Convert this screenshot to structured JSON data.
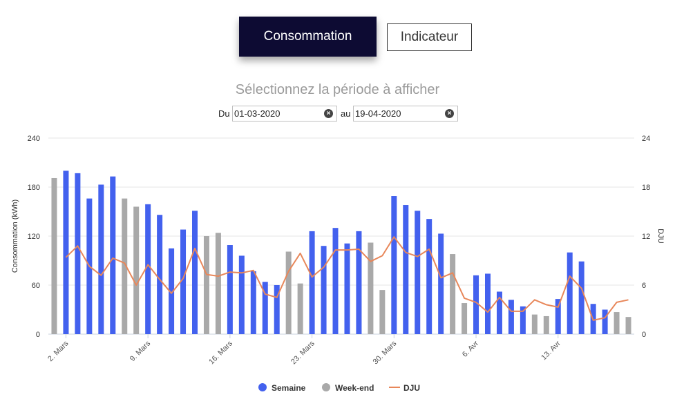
{
  "tabs": {
    "consommation_label": "Consommation",
    "indicateur_label": "Indicateur"
  },
  "period": {
    "title": "Sélectionnez la période à afficher",
    "from_label": "Du",
    "from_value": "01-03-2020",
    "to_label": "au",
    "to_value": "19-04-2020"
  },
  "chart_data": {
    "type": "bar",
    "ylabel": "Consommation (kWh)",
    "y2label": "DJU",
    "ylim": [
      0,
      240
    ],
    "y2lim": [
      0,
      24
    ],
    "yticks": [
      0,
      60,
      120,
      180,
      240
    ],
    "y2ticks": [
      0,
      6,
      12,
      18,
      24
    ],
    "grid": true,
    "legend_position": "bottom-center",
    "x_tick_labels": [
      {
        "label": "2. Mars",
        "date": "2020-03-02"
      },
      {
        "label": "9. Mars",
        "date": "2020-03-09"
      },
      {
        "label": "16. Mars",
        "date": "2020-03-16"
      },
      {
        "label": "23. Mars",
        "date": "2020-03-23"
      },
      {
        "label": "30. Mars",
        "date": "2020-03-30"
      },
      {
        "label": "6. Avr",
        "date": "2020-04-06"
      },
      {
        "label": "13. Avr",
        "date": "2020-04-13"
      }
    ],
    "dates": [
      "2020-03-01",
      "2020-03-02",
      "2020-03-03",
      "2020-03-04",
      "2020-03-05",
      "2020-03-06",
      "2020-03-07",
      "2020-03-08",
      "2020-03-09",
      "2020-03-10",
      "2020-03-11",
      "2020-03-12",
      "2020-03-13",
      "2020-03-14",
      "2020-03-15",
      "2020-03-16",
      "2020-03-17",
      "2020-03-18",
      "2020-03-19",
      "2020-03-20",
      "2020-03-21",
      "2020-03-22",
      "2020-03-23",
      "2020-03-24",
      "2020-03-25",
      "2020-03-26",
      "2020-03-27",
      "2020-03-28",
      "2020-03-29",
      "2020-03-30",
      "2020-03-31",
      "2020-04-01",
      "2020-04-02",
      "2020-04-03",
      "2020-04-04",
      "2020-04-05",
      "2020-04-06",
      "2020-04-07",
      "2020-04-08",
      "2020-04-09",
      "2020-04-10",
      "2020-04-11",
      "2020-04-12",
      "2020-04-13",
      "2020-04-14",
      "2020-04-15",
      "2020-04-16",
      "2020-04-17",
      "2020-04-18",
      "2020-04-19"
    ],
    "series": [
      {
        "name": "Semaine",
        "color": "#4361ee",
        "kind": "bar",
        "values": [
          null,
          200,
          197,
          166,
          183,
          193,
          null,
          null,
          159,
          146,
          105,
          128,
          151,
          null,
          null,
          109,
          96,
          77,
          64,
          60,
          null,
          null,
          126,
          108,
          130,
          111,
          126,
          null,
          null,
          169,
          158,
          151,
          141,
          123,
          null,
          null,
          72,
          74,
          52,
          42,
          34,
          null,
          null,
          43,
          100,
          89,
          37,
          30,
          null,
          null
        ]
      },
      {
        "name": "Week-end",
        "color": "#a9a9a9",
        "kind": "bar",
        "values": [
          191,
          null,
          null,
          null,
          null,
          null,
          166,
          156,
          null,
          null,
          null,
          null,
          null,
          120,
          124,
          null,
          null,
          null,
          null,
          null,
          101,
          62,
          null,
          null,
          null,
          null,
          null,
          112,
          54,
          null,
          null,
          null,
          null,
          null,
          98,
          38,
          null,
          null,
          null,
          null,
          null,
          24,
          22,
          null,
          null,
          null,
          null,
          null,
          27,
          21
        ]
      },
      {
        "name": "DJU",
        "color": "#e8875a",
        "kind": "line",
        "axis": "right",
        "values": [
          null,
          9.4,
          10.8,
          8.3,
          7.2,
          9.3,
          8.7,
          6.0,
          8.5,
          6.7,
          5.0,
          6.8,
          10.5,
          7.3,
          7.1,
          7.6,
          7.5,
          7.8,
          4.9,
          4.5,
          7.7,
          9.9,
          7.0,
          8.2,
          10.3,
          10.3,
          10.4,
          8.9,
          9.6,
          11.9,
          10.0,
          9.5,
          10.4,
          6.9,
          7.5,
          4.4,
          3.9,
          2.7,
          4.5,
          2.8,
          2.8,
          4.2,
          3.6,
          3.3,
          7.1,
          5.6,
          1.7,
          2.0,
          3.9,
          4.2
        ]
      }
    ]
  }
}
